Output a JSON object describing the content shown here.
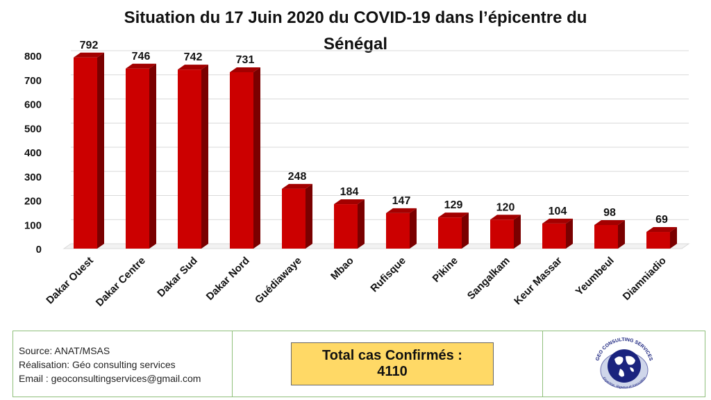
{
  "chart_data": {
    "type": "bar",
    "title_lines": [
      "Situation du 17 Juin 2020 du COVID-19 dans l’épicentre du",
      "Sénégal"
    ],
    "categories": [
      "Dakar Ouest",
      "Dakar Centre",
      "Dakar Sud",
      "Dakar Nord",
      "Guédiawaye",
      "Mbao",
      "Rufisque",
      "Pikine",
      "Sangalkam",
      "Keur Massar",
      "Yeumbeul",
      "Diamniadio"
    ],
    "values": [
      792,
      746,
      742,
      731,
      248,
      184,
      147,
      129,
      120,
      104,
      98,
      69
    ],
    "ylim": [
      0,
      800
    ],
    "yticks": [
      0,
      100,
      200,
      300,
      400,
      500,
      600,
      700,
      800
    ],
    "grid": true,
    "legend": "none",
    "bar_color": "#cc0000",
    "bar_side_color": "#7a0000",
    "bar_top_color": "#a30000"
  },
  "footer": {
    "source": "Source: ANAT/MSAS",
    "realisation": "Réalisation: Géo consulting services",
    "email": "Email : geoconsultingservices@gmail.com",
    "total_label": "Total cas Confirmés :",
    "total_value": "4110",
    "logo_text": "GEO CONSULTING SERVICES",
    "logo_tagline": "Expertise, Rigueur et Innovation",
    "logo_icon": "globe-icon"
  }
}
